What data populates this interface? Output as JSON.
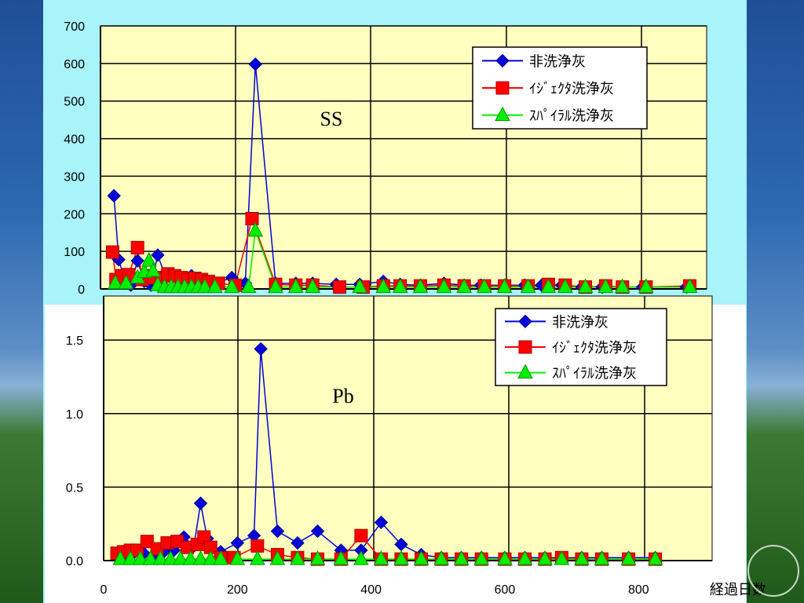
{
  "chart_data": [
    {
      "type": "line",
      "title": "SS",
      "ylim": [
        0,
        700
      ],
      "xlim": [
        0,
        900
      ],
      "yticks": [
        "0",
        "100",
        "200",
        "300",
        "400",
        "500",
        "600",
        "700"
      ],
      "grid": true,
      "legend_position": "top-right",
      "series": [
        {
          "name": "非洗浄灰",
          "color": "#0000dd",
          "marker": "diamond",
          "points": [
            [
              20,
              248
            ],
            [
              27,
              78
            ],
            [
              35,
              30
            ],
            [
              45,
              10
            ],
            [
              55,
              75
            ],
            [
              65,
              20
            ],
            [
              75,
              10
            ],
            [
              85,
              90
            ],
            [
              95,
              40
            ],
            [
              105,
              30
            ],
            [
              115,
              25
            ],
            [
              125,
              30
            ],
            [
              135,
              35
            ],
            [
              145,
              25
            ],
            [
              155,
              20
            ],
            [
              170,
              15
            ],
            [
              195,
              30
            ],
            [
              215,
              15
            ],
            [
              230,
              598
            ],
            [
              260,
              15
            ],
            [
              290,
              15
            ],
            [
              315,
              15
            ],
            [
              350,
              12
            ],
            [
              385,
              12
            ],
            [
              420,
              20
            ],
            [
              445,
              12
            ],
            [
              475,
              10
            ],
            [
              510,
              15
            ],
            [
              540,
              10
            ],
            [
              565,
              10
            ],
            [
              600,
              10
            ],
            [
              630,
              10
            ],
            [
              655,
              10
            ],
            [
              685,
              10
            ],
            [
              715,
              5
            ],
            [
              745,
              5
            ],
            [
              805,
              5
            ],
            [
              870,
              5
            ]
          ]
        },
        {
          "name": "ｲｼﾞｪｸﾀ洗浄灰",
          "color": "#ff0000",
          "marker": "square",
          "points": [
            [
              18,
              98
            ],
            [
              23,
              25
            ],
            [
              32,
              35
            ],
            [
              42,
              38
            ],
            [
              55,
              110
            ],
            [
              62,
              25
            ],
            [
              70,
              35
            ],
            [
              80,
              30
            ],
            [
              90,
              25
            ],
            [
              100,
              40
            ],
            [
              110,
              35
            ],
            [
              120,
              30
            ],
            [
              130,
              25
            ],
            [
              140,
              28
            ],
            [
              150,
              25
            ],
            [
              160,
              20
            ],
            [
              175,
              15
            ],
            [
              200,
              10
            ],
            [
              225,
              187
            ],
            [
              260,
              12
            ],
            [
              290,
              10
            ],
            [
              315,
              10
            ],
            [
              355,
              5
            ],
            [
              390,
              5
            ],
            [
              420,
              8
            ],
            [
              445,
              8
            ],
            [
              475,
              8
            ],
            [
              510,
              10
            ],
            [
              540,
              8
            ],
            [
              570,
              8
            ],
            [
              600,
              8
            ],
            [
              635,
              8
            ],
            [
              665,
              12
            ],
            [
              690,
              10
            ],
            [
              720,
              5
            ],
            [
              750,
              8
            ],
            [
              775,
              5
            ],
            [
              810,
              5
            ],
            [
              875,
              8
            ]
          ]
        },
        {
          "name": "ｽﾊﾟｲﾗﾙ洗浄灰",
          "color": "#00ee00",
          "marker": "triangle",
          "points": [
            [
              22,
              15
            ],
            [
              38,
              15
            ],
            [
              55,
              30
            ],
            [
              65,
              45
            ],
            [
              72,
              75
            ],
            [
              78,
              48
            ],
            [
              85,
              10
            ],
            [
              95,
              5
            ],
            [
              105,
              5
            ],
            [
              115,
              5
            ],
            [
              125,
              5
            ],
            [
              135,
              5
            ],
            [
              145,
              5
            ],
            [
              155,
              5
            ],
            [
              170,
              5
            ],
            [
              195,
              5
            ],
            [
              220,
              5
            ],
            [
              230,
              155
            ],
            [
              260,
              5
            ],
            [
              290,
              5
            ],
            [
              315,
              5
            ],
            [
              385,
              5
            ],
            [
              420,
              5
            ],
            [
              445,
              5
            ],
            [
              475,
              5
            ],
            [
              510,
              5
            ],
            [
              540,
              5
            ],
            [
              570,
              5
            ],
            [
              600,
              5
            ],
            [
              635,
              5
            ],
            [
              665,
              5
            ],
            [
              690,
              5
            ],
            [
              720,
              5
            ],
            [
              750,
              5
            ],
            [
              775,
              5
            ],
            [
              810,
              5
            ],
            [
              875,
              5
            ]
          ]
        }
      ]
    },
    {
      "type": "line",
      "title": "Pb",
      "ylim": [
        0,
        1.8
      ],
      "xlim": [
        0,
        910
      ],
      "yticks": [
        "0.0",
        "0.5",
        "1.0",
        "1.5"
      ],
      "xticks": [
        "0",
        "200",
        "400",
        "600",
        "800"
      ],
      "xlabel": "経過日数",
      "grid": true,
      "legend_position": "top-right",
      "series": [
        {
          "name": "非洗浄灰",
          "color": "#0000dd",
          "marker": "diamond",
          "points": [
            [
              25,
              0.02
            ],
            [
              40,
              0.03
            ],
            [
              60,
              0.05
            ],
            [
              75,
              0.04
            ],
            [
              90,
              0.06
            ],
            [
              105,
              0.07
            ],
            [
              120,
              0.16
            ],
            [
              135,
              0.1
            ],
            [
              145,
              0.39
            ],
            [
              155,
              0.15
            ],
            [
              175,
              0.06
            ],
            [
              200,
              0.12
            ],
            [
              225,
              0.17
            ],
            [
              235,
              1.44
            ],
            [
              260,
              0.2
            ],
            [
              290,
              0.12
            ],
            [
              320,
              0.2
            ],
            [
              355,
              0.07
            ],
            [
              385,
              0.07
            ],
            [
              415,
              0.26
            ],
            [
              445,
              0.11
            ],
            [
              475,
              0.04
            ],
            [
              505,
              0.02
            ],
            [
              535,
              0.02
            ],
            [
              565,
              0.02
            ],
            [
              600,
              0.02
            ],
            [
              630,
              0.02
            ],
            [
              660,
              0.02
            ],
            [
              685,
              0.02
            ],
            [
              715,
              0.02
            ],
            [
              745,
              0.02
            ],
            [
              785,
              0.02
            ],
            [
              825,
              0.02
            ]
          ]
        },
        {
          "name": "ｲｼﾞｪｸﾀ洗浄灰",
          "color": "#ff0000",
          "marker": "square",
          "points": [
            [
              20,
              0.05
            ],
            [
              30,
              0.06
            ],
            [
              40,
              0.07
            ],
            [
              50,
              0.07
            ],
            [
              65,
              0.13
            ],
            [
              80,
              0.08
            ],
            [
              95,
              0.12
            ],
            [
              110,
              0.13
            ],
            [
              125,
              0.09
            ],
            [
              140,
              0.11
            ],
            [
              150,
              0.16
            ],
            [
              160,
              0.09
            ],
            [
              175,
              0.02
            ],
            [
              195,
              0.02
            ],
            [
              230,
              0.1
            ],
            [
              260,
              0.04
            ],
            [
              290,
              0.02
            ],
            [
              320,
              0.01
            ],
            [
              355,
              0.01
            ],
            [
              385,
              0.17
            ],
            [
              415,
              0.01
            ],
            [
              445,
              0.01
            ],
            [
              475,
              0.01
            ],
            [
              505,
              0.01
            ],
            [
              535,
              0.01
            ],
            [
              565,
              0.01
            ],
            [
              600,
              0.01
            ],
            [
              630,
              0.01
            ],
            [
              660,
              0.01
            ],
            [
              685,
              0.02
            ],
            [
              715,
              0.01
            ],
            [
              745,
              0.01
            ],
            [
              785,
              0.01
            ],
            [
              825,
              0.01
            ]
          ]
        },
        {
          "name": "ｽﾊﾟｲﾗﾙ洗浄灰",
          "color": "#00ee00",
          "marker": "triangle",
          "points": [
            [
              25,
              0.01
            ],
            [
              40,
              0.01
            ],
            [
              55,
              0.01
            ],
            [
              70,
              0.01
            ],
            [
              85,
              0.01
            ],
            [
              100,
              0.01
            ],
            [
              115,
              0.01
            ],
            [
              130,
              0.01
            ],
            [
              145,
              0.01
            ],
            [
              160,
              0.01
            ],
            [
              175,
              0.01
            ],
            [
              200,
              0.01
            ],
            [
              230,
              0.01
            ],
            [
              260,
              0.01
            ],
            [
              290,
              0.01
            ],
            [
              320,
              0.01
            ],
            [
              355,
              0.01
            ],
            [
              385,
              0.01
            ],
            [
              415,
              0.01
            ],
            [
              445,
              0.01
            ],
            [
              475,
              0.01
            ],
            [
              505,
              0.01
            ],
            [
              535,
              0.01
            ],
            [
              565,
              0.01
            ],
            [
              600,
              0.01
            ],
            [
              630,
              0.01
            ],
            [
              660,
              0.01
            ],
            [
              685,
              0.01
            ],
            [
              715,
              0.01
            ],
            [
              745,
              0.01
            ],
            [
              785,
              0.01
            ],
            [
              825,
              0.01
            ]
          ]
        }
      ]
    }
  ]
}
